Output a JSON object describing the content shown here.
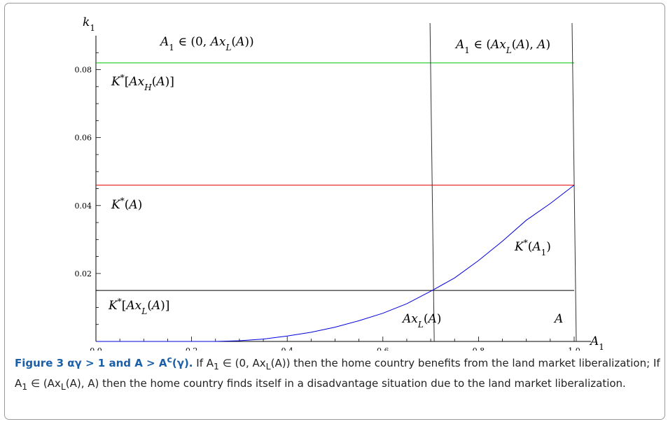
{
  "chart_data": {
    "type": "line",
    "xlabel": "A₁",
    "ylabel": "k₁",
    "xlim": [
      0.0,
      1.0
    ],
    "ylim": [
      0.0,
      0.09
    ],
    "xticks": [
      "0.0",
      "0.2",
      "0.4",
      "0.6",
      "0.8",
      "1.0"
    ],
    "xtick_values": [
      0.0,
      0.2,
      0.4,
      0.6,
      0.8,
      1.0
    ],
    "yticks": [
      "0.02",
      "0.04",
      "0.06",
      "0.08"
    ],
    "ytick_values": [
      0.02,
      0.04,
      0.06,
      0.08
    ],
    "hlines": [
      {
        "y": 0.082,
        "color": "#00c000",
        "label": "K*[Ax_H(A)]"
      },
      {
        "y": 0.046,
        "color": "#e00000",
        "label": "K*(A)"
      },
      {
        "y": 0.015,
        "color": "#000000",
        "label": "K*[Ax_L(A)]"
      }
    ],
    "vlines": [
      {
        "x": 0.703,
        "label": "Ax_L(A)"
      },
      {
        "x": 1.0,
        "label": "A"
      }
    ],
    "curve": {
      "name": "K*(A₁)",
      "color": "#0000e0",
      "x": [
        0.25,
        0.3,
        0.35,
        0.4,
        0.45,
        0.5,
        0.55,
        0.6,
        0.65,
        0.703,
        0.75,
        0.8,
        0.85,
        0.9,
        0.95,
        1.0
      ],
      "y": [
        0.0,
        0.0002,
        0.0007,
        0.0016,
        0.0027,
        0.0042,
        0.0061,
        0.0083,
        0.0111,
        0.015,
        0.0187,
        0.0238,
        0.0295,
        0.0357,
        0.0406,
        0.046
      ]
    },
    "annotations": {
      "region_left": "A₁ ∈ (0, Ax_L(A))",
      "region_right": "A₁ ∈ (Ax_L(A), A)",
      "k_high": "K*[Ax_H(A)]",
      "k_mid": "K*(A)",
      "k_low": "K*[Ax_L(A)]",
      "k_curve": "K*(A₁)",
      "axl": "Ax_L(A)",
      "a": "A"
    }
  },
  "caption": {
    "head": "Figure 3 αγ > 1 and A > A",
    "head_sup": "c",
    "head_tail": "(γ).",
    "body_1": " If A",
    "body_1_sub": "1",
    "body_2": " ∈ (0, Ax",
    "body_2_sub": "L",
    "body_3": "(A)) then the home country benefits from the land market liberalization; If A",
    "body_3_sub": "1",
    "body_4": " ∈ (Ax",
    "body_4_sub": "L",
    "body_5": "(A), A) then the home country finds itself in a disadvantage situation due to the land market liberalization."
  }
}
